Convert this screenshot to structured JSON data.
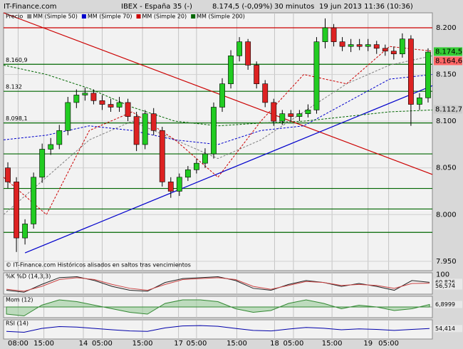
{
  "source": "IT-Finance.com",
  "header": {
    "instrument": "IBEX - España 35 (-)",
    "quote": "8.174,5 (-0,09%)",
    "interval": "30 minutos",
    "timestamp": "19 jun 2013 11:36 (10:36)"
  },
  "chart_data": [
    {
      "type": "candlestick",
      "legend_label": "Precio",
      "footer": "© IT-Finance.com  Históricos alisados en saltos tras vencimientos",
      "xlim": [
        0,
        50
      ],
      "ylim": [
        7940,
        8216
      ],
      "yticks": [
        {
          "value": 8200,
          "label": "8.200"
        },
        {
          "value": 8150,
          "label": "8.150"
        },
        {
          "value": 8100,
          "label": "8.100"
        },
        {
          "value": 8050,
          "label": "8.050"
        },
        {
          "value": 8000,
          "label": "8.000"
        },
        {
          "value": 7950,
          "label": "7.950"
        }
      ],
      "xticks": [
        {
          "value": 1.7,
          "label": "08:00"
        },
        {
          "value": 4.7,
          "label": "15:00"
        },
        {
          "value": 9.3,
          "label": "14"
        },
        {
          "value": 11.5,
          "label": "05:00"
        },
        {
          "value": 16.2,
          "label": "15:00"
        },
        {
          "value": 20.4,
          "label": "17"
        },
        {
          "value": 22.5,
          "label": "05:00"
        },
        {
          "value": 27.2,
          "label": "15:00"
        },
        {
          "value": 31.6,
          "label": "18"
        },
        {
          "value": 33.8,
          "label": "05:00"
        },
        {
          "value": 38.3,
          "label": "15:00"
        },
        {
          "value": 42.5,
          "label": "19"
        },
        {
          "value": 44.9,
          "label": "05:00"
        }
      ],
      "up_color": "#22cc22",
      "down_color": "#dd2222",
      "open": [
        8050,
        8035,
        7975,
        7990,
        8040,
        8070,
        8075,
        8090,
        8120,
        8128,
        8130,
        8122,
        8118,
        8115,
        8120,
        8105,
        8075,
        8108,
        8090,
        8035,
        8025,
        8040,
        8048,
        8055,
        8065,
        8115,
        8140,
        8170,
        8185,
        8160,
        8140,
        8120,
        8100,
        8108,
        8105,
        8108,
        8112,
        8185,
        8200,
        8185,
        8180,
        8182,
        8180,
        8182,
        8178,
        8175,
        8172,
        8188,
        8118,
        8125
      ],
      "high": [
        8056,
        8040,
        7995,
        8045,
        8076,
        8082,
        8096,
        8126,
        8134,
        8136,
        8134,
        8128,
        8124,
        8126,
        8124,
        8110,
        8112,
        8114,
        8094,
        8040,
        8044,
        8052,
        8060,
        8071,
        8120,
        8146,
        8176,
        8190,
        8188,
        8164,
        8144,
        8124,
        8112,
        8112,
        8112,
        8118,
        8190,
        8210,
        8204,
        8190,
        8188,
        8188,
        8188,
        8186,
        8182,
        8180,
        8194,
        8192,
        8130,
        8178
      ],
      "low": [
        8028,
        7960,
        7968,
        7985,
        8034,
        8064,
        8070,
        8085,
        8114,
        8122,
        8118,
        8112,
        8110,
        8110,
        8100,
        8068,
        8070,
        8085,
        8030,
        8018,
        8020,
        8036,
        8044,
        8050,
        8060,
        8110,
        8135,
        8164,
        8155,
        8135,
        8115,
        8095,
        8096,
        8100,
        8100,
        8104,
        8108,
        8178,
        8180,
        8175,
        8174,
        8176,
        8175,
        8172,
        8170,
        8166,
        8168,
        8095,
        8112,
        8120
      ],
      "close": [
        8035,
        7975,
        7990,
        8040,
        8070,
        8075,
        8090,
        8120,
        8128,
        8130,
        8122,
        8118,
        8115,
        8120,
        8105,
        8075,
        8108,
        8090,
        8035,
        8025,
        8040,
        8048,
        8055,
        8065,
        8115,
        8140,
        8170,
        8185,
        8160,
        8140,
        8120,
        8100,
        8108,
        8105,
        8108,
        8112,
        8185,
        8200,
        8185,
        8180,
        8182,
        8180,
        8182,
        8178,
        8175,
        8172,
        8188,
        8118,
        8125,
        8174
      ],
      "series": [
        {
          "name": "MM (Simple 50)",
          "color": "#808080",
          "x": [
            0,
            5,
            10,
            15,
            20,
            25,
            30,
            35,
            40,
            45,
            50
          ],
          "values": [
            8000,
            8040,
            8080,
            8100,
            8080,
            8060,
            8080,
            8110,
            8140,
            8160,
            8170
          ]
        },
        {
          "name": "MM (Simple 70)",
          "color": "#0000cc",
          "x": [
            0,
            5,
            10,
            15,
            20,
            25,
            30,
            35,
            40,
            45,
            50
          ],
          "values": [
            8080,
            8085,
            8095,
            8090,
            8080,
            8075,
            8090,
            8095,
            8120,
            8145,
            8150
          ]
        },
        {
          "name": "MM (Simple 20)",
          "color": "#cc0000",
          "x": [
            0,
            5,
            10,
            15,
            20,
            25,
            30,
            35,
            40,
            45,
            50
          ],
          "values": [
            8040,
            8000,
            8090,
            8110,
            8080,
            8040,
            8100,
            8150,
            8140,
            8180,
            8175
          ]
        },
        {
          "name": "MM (Simple 200)",
          "color": "#006600",
          "x": [
            0,
            5,
            10,
            15,
            20,
            25,
            30,
            35,
            40,
            45,
            50
          ],
          "values": [
            8160,
            8150,
            8135,
            8115,
            8100,
            8095,
            8098,
            8100,
            8105,
            8110,
            8112
          ]
        }
      ],
      "trendlines": [
        {
          "color": "#cc0000",
          "x": [
            0,
            50
          ],
          "values": [
            8216,
            8043
          ]
        },
        {
          "color": "#0000cc",
          "x": [
            2.5,
            50
          ],
          "values": [
            7959,
            8138
          ]
        }
      ],
      "levels": [
        {
          "value": 8200,
          "color": "#cc0000"
        },
        {
          "value": 8160.9,
          "label": "8.160,9",
          "color": "#006600"
        },
        {
          "value": 8132,
          "label": "8.132",
          "color": "#006600"
        },
        {
          "value": 8098.1,
          "label": "8.098,1",
          "color": "#006600"
        },
        {
          "value": 8065,
          "color": "#006600"
        },
        {
          "value": 8028,
          "color": "#006600"
        },
        {
          "value": 8006,
          "color": "#006600"
        },
        {
          "value": 7981,
          "color": "#006600"
        }
      ],
      "price_labels": [
        {
          "value": 8174.5,
          "label": "8.174,5",
          "color": "#33cc33"
        },
        {
          "value": 8164.6,
          "label": "8.164,6",
          "color": "#ff6666"
        },
        {
          "value": 8112.7,
          "label": "8.112,7",
          "color": "#cccccc"
        }
      ]
    },
    {
      "type": "line",
      "title": "%K %D (14,3,3)",
      "ylim": [
        0,
        110
      ],
      "yticks": [
        100
      ],
      "series": [
        {
          "color": "#222222",
          "values": [
            20,
            10,
            50,
            85,
            90,
            70,
            40,
            20,
            15,
            60,
            80,
            85,
            90,
            70,
            30,
            20,
            50,
            70,
            60,
            40,
            55,
            40,
            20,
            70,
            60.826
          ],
          "current": {
            "value": 60.826,
            "label": "60,826"
          }
        },
        {
          "color": "#cc4444",
          "values": [
            25,
            15,
            40,
            75,
            85,
            75,
            50,
            30,
            20,
            50,
            75,
            80,
            85,
            75,
            40,
            25,
            45,
            65,
            60,
            45,
            50,
            45,
            30,
            55,
            56.574
          ],
          "current": {
            "value": 56.574,
            "label": "56,574"
          }
        }
      ]
    },
    {
      "type": "area",
      "title": "Mom (12)",
      "ylim": [
        -30,
        30
      ],
      "series": [
        {
          "color": "#338833",
          "values": [
            -20,
            -25,
            5,
            20,
            15,
            5,
            -5,
            -15,
            -20,
            10,
            20,
            20,
            15,
            -5,
            -15,
            -10,
            10,
            20,
            10,
            -5,
            5,
            0,
            -10,
            -5,
            6.8999
          ],
          "current": {
            "value": 6.8999,
            "label": "6,8999"
          }
        }
      ]
    },
    {
      "type": "line",
      "title": "RSI (14)",
      "ylim": [
        0,
        100
      ],
      "series": [
        {
          "color": "#0000aa",
          "values": [
            40,
            35,
            55,
            65,
            62,
            55,
            48,
            42,
            40,
            58,
            68,
            70,
            66,
            55,
            45,
            42,
            52,
            60,
            56,
            48,
            53,
            50,
            45,
            50,
            54.414
          ],
          "current": {
            "value": 54.414,
            "label": "54,414"
          }
        }
      ]
    }
  ]
}
